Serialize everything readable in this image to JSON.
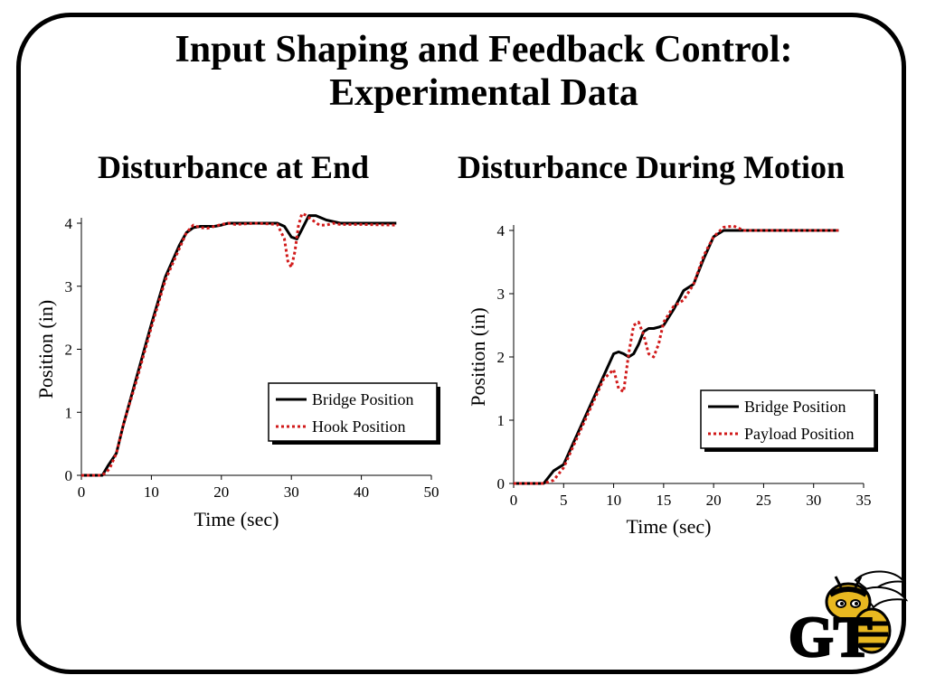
{
  "slide": {
    "title_line1": "Input Shaping and Feedback Control:",
    "title_line2": "Experimental Data"
  },
  "subtitles": {
    "left": "Disturbance at End",
    "right": "Disturbance During Motion"
  },
  "colors": {
    "bridge": "#000000",
    "second": "#d11a1a",
    "frame": "#000000"
  },
  "logo": {
    "icon": "georgia-tech-yellow-jacket-logo",
    "text": "GT"
  },
  "chart_data": [
    {
      "type": "line",
      "title": "Disturbance at End",
      "xlabel": "Time (sec)",
      "ylabel": "Position (in)",
      "xlim": [
        0,
        50
      ],
      "ylim": [
        0,
        4
      ],
      "xticks": [
        0,
        10,
        20,
        30,
        40,
        50
      ],
      "yticks": [
        0,
        1,
        2,
        3,
        4
      ],
      "legend": {
        "placement": "center-right",
        "entries": [
          "Bridge Position",
          "Hook Position"
        ]
      },
      "series": [
        {
          "name": "Bridge Position",
          "style": "solid",
          "x": [
            0,
            3,
            3.8,
            5,
            6,
            8,
            10,
            12,
            14,
            15,
            16,
            17,
            18,
            19,
            20,
            21,
            22,
            25,
            28,
            29,
            30,
            30.8,
            31.5,
            32.5,
            33.5,
            35,
            37,
            40,
            45
          ],
          "y": [
            0,
            0,
            0.15,
            0.35,
            0.8,
            1.6,
            2.4,
            3.15,
            3.65,
            3.85,
            3.93,
            3.95,
            3.95,
            3.95,
            3.97,
            4,
            4,
            4,
            4,
            3.95,
            3.78,
            3.75,
            3.9,
            4.12,
            4.12,
            4.05,
            4,
            4,
            4
          ]
        },
        {
          "name": "Hook Position",
          "style": "dotted",
          "x": [
            0,
            3,
            4,
            5,
            6,
            8,
            10,
            12,
            14,
            15,
            16,
            17,
            18,
            19,
            20,
            21,
            22,
            25,
            28,
            29,
            29.5,
            30,
            30.5,
            31,
            31.5,
            32,
            33,
            34,
            35,
            36,
            37,
            40,
            45
          ],
          "y": [
            0,
            0,
            0.1,
            0.35,
            0.8,
            1.55,
            2.35,
            3.1,
            3.6,
            3.85,
            3.97,
            3.93,
            3.92,
            3.95,
            3.98,
            4,
            3.98,
            4,
            3.98,
            3.75,
            3.4,
            3.3,
            3.55,
            3.95,
            4.15,
            4.13,
            4.05,
            3.97,
            3.97,
            4,
            3.98,
            3.98,
            3.97
          ]
        }
      ]
    },
    {
      "type": "line",
      "title": "Disturbance During Motion",
      "xlabel": "Time (sec)",
      "ylabel": "Position (in)",
      "xlim": [
        0,
        35
      ],
      "ylim": [
        0,
        4
      ],
      "xticks": [
        0,
        5,
        10,
        15,
        20,
        25,
        30,
        35
      ],
      "yticks": [
        0,
        1,
        2,
        3,
        4
      ],
      "legend": {
        "placement": "center-right",
        "entries": [
          "Bridge Position",
          "Payload Position"
        ]
      },
      "series": [
        {
          "name": "Bridge Position",
          "style": "solid",
          "x": [
            0,
            3,
            3.5,
            4,
            5,
            6,
            7,
            8,
            9,
            10,
            10.5,
            11,
            11.5,
            12,
            12.5,
            13,
            13.5,
            14,
            14.5,
            15,
            16,
            17,
            18,
            19,
            20,
            21,
            22,
            25,
            28,
            32.5
          ],
          "y": [
            0,
            0,
            0.1,
            0.2,
            0.3,
            0.65,
            1,
            1.35,
            1.7,
            2.05,
            2.08,
            2.05,
            2,
            2.05,
            2.2,
            2.4,
            2.45,
            2.45,
            2.47,
            2.5,
            2.75,
            3.05,
            3.15,
            3.55,
            3.9,
            4,
            4,
            4,
            4,
            4
          ]
        },
        {
          "name": "Payload Position",
          "style": "dotted",
          "x": [
            0,
            3,
            4,
            5,
            6,
            7,
            8,
            9,
            10,
            10.5,
            11,
            11.5,
            12,
            12.5,
            13,
            13.5,
            14,
            14.5,
            15,
            16,
            17,
            18,
            19,
            20,
            21,
            22,
            23,
            25,
            28,
            32.5
          ],
          "y": [
            0,
            0,
            0.05,
            0.25,
            0.6,
            0.95,
            1.3,
            1.65,
            1.8,
            1.5,
            1.45,
            2.05,
            2.5,
            2.55,
            2.35,
            2.05,
            2.0,
            2.2,
            2.55,
            2.8,
            2.9,
            3.15,
            3.6,
            3.9,
            4.05,
            4.07,
            4.0,
            4.0,
            4.0,
            4.0
          ]
        }
      ]
    }
  ]
}
